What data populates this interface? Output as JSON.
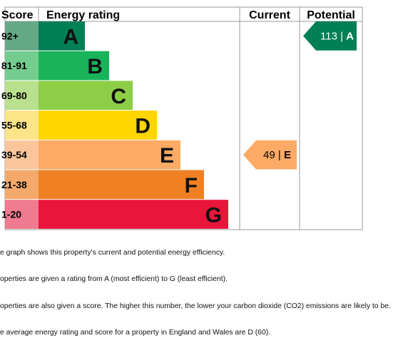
{
  "chart_data": {
    "type": "bar",
    "headers": {
      "score": "Score",
      "rating": "Energy rating",
      "current": "Current",
      "potential": "Potential"
    },
    "bands": [
      {
        "range": "92+",
        "letter": "A",
        "color": "#008054",
        "range_color": "#64a886"
      },
      {
        "range": "81-91",
        "letter": "B",
        "color": "#19b459",
        "range_color": "#72cd8e"
      },
      {
        "range": "69-80",
        "letter": "C",
        "color": "#8dce46",
        "range_color": "#b9e08c"
      },
      {
        "range": "55-68",
        "letter": "D",
        "color": "#ffd500",
        "range_color": "#fce489"
      },
      {
        "range": "39-54",
        "letter": "E",
        "color": "#fcaa65",
        "range_color": "#fbc59b"
      },
      {
        "range": "21-38",
        "letter": "F",
        "color": "#ef8023",
        "range_color": "#f4a96b"
      },
      {
        "range": "1-20",
        "letter": "G",
        "color": "#e9153b",
        "range_color": "#f07a8f"
      }
    ],
    "current": {
      "score": 49,
      "letter": "E",
      "color": "#fcaa65",
      "text_color": "#000000"
    },
    "potential": {
      "score": 113,
      "letter": "A",
      "color": "#008054",
      "text_color": "#ffffff"
    }
  },
  "notes": [
    "e graph shows this property's current and potential energy efficiency.",
    "operties are given a rating from A (most efficient) to G (least efficient).",
    "operties are also given a score. The higher this number, the lower your carbon dioxide (CO2) emissions are likely to be.",
    "e average energy rating and score for a property in England and Wales are D (60)."
  ]
}
